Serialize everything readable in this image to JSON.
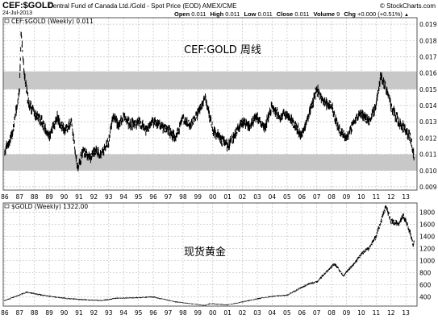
{
  "header": {
    "symbol": "CEF:$GOLD",
    "description": "Central Fund of Canada Ltd./Gold - Spot Price (EOD) AMEX/CME",
    "watermark": "© StockCharts.com",
    "date": "24-Jul-2013",
    "open_label": "Open",
    "open": "0.011",
    "high_label": "High",
    "high": "0.011",
    "low_label": "Low",
    "low": "0.011",
    "close_label": "Close",
    "close": "0.011",
    "volume_label": "Volume",
    "volume": "9",
    "chg_label": "Chg",
    "chg": "+0.000 (+0.51%)",
    "chg_arrow": "▲"
  },
  "chart_data": [
    {
      "type": "line",
      "title": "CEF:$GOLD (Weekly) 0.011",
      "annotation": "CEF:GOLD 周线",
      "x_ticks": [
        "86",
        "87",
        "88",
        "89",
        "90",
        "91",
        "92",
        "93",
        "94",
        "95",
        "96",
        "97",
        "98",
        "99",
        "00",
        "01",
        "02",
        "03",
        "04",
        "05",
        "06",
        "07",
        "08",
        "09",
        "10",
        "11",
        "12",
        "13"
      ],
      "y_ticks": [
        "0.009",
        "0.010",
        "0.011",
        "0.012",
        "0.013",
        "0.014",
        "0.015",
        "0.016",
        "0.017",
        "0.018",
        "0.019"
      ],
      "ylim": [
        0.0088,
        0.0194
      ],
      "grid": true,
      "shaded_bands": [
        {
          "from": 0.01,
          "to": 0.011,
          "color": "#c8c8c8"
        },
        {
          "from": 0.015,
          "to": 0.0161,
          "color": "#c8c8c8"
        }
      ],
      "x": [
        1986.0,
        1986.5,
        1987.0,
        1987.1,
        1987.3,
        1987.6,
        1988.0,
        1988.5,
        1989.0,
        1989.5,
        1990.0,
        1990.5,
        1990.9,
        1991.3,
        1991.8,
        1992.0,
        1992.5,
        1993.0,
        1993.3,
        1993.6,
        1994.0,
        1994.5,
        1995.0,
        1995.5,
        1996.0,
        1996.5,
        1997.0,
        1997.5,
        1998.0,
        1998.5,
        1999.0,
        1999.5,
        2000.0,
        2000.5,
        2001.0,
        2001.5,
        2002.0,
        2002.5,
        2003.0,
        2003.5,
        2004.0,
        2004.5,
        2005.0,
        2005.5,
        2006.0,
        2006.5,
        2007.0,
        2007.5,
        2008.0,
        2008.5,
        2009.0,
        2009.5,
        2010.0,
        2010.5,
        2011.0,
        2011.3,
        2011.7,
        2012.0,
        2012.5,
        2013.0,
        2013.3,
        2013.55
      ],
      "values": [
        0.0112,
        0.0122,
        0.015,
        0.0185,
        0.016,
        0.0142,
        0.0135,
        0.013,
        0.012,
        0.0133,
        0.0125,
        0.013,
        0.0102,
        0.0112,
        0.0108,
        0.0112,
        0.011,
        0.0118,
        0.0135,
        0.0128,
        0.0133,
        0.0128,
        0.013,
        0.0125,
        0.013,
        0.0127,
        0.0125,
        0.012,
        0.0132,
        0.0128,
        0.0135,
        0.0145,
        0.0125,
        0.012,
        0.0115,
        0.0122,
        0.013,
        0.0128,
        0.0133,
        0.0126,
        0.014,
        0.0133,
        0.0135,
        0.0128,
        0.0122,
        0.0135,
        0.015,
        0.0142,
        0.014,
        0.0125,
        0.012,
        0.013,
        0.0135,
        0.013,
        0.014,
        0.0158,
        0.015,
        0.014,
        0.013,
        0.0125,
        0.012,
        0.0108
      ]
    },
    {
      "type": "line",
      "title": "$GOLD (Weekly) 1322.00",
      "annotation": "现货黄金",
      "x_ticks": [
        "86",
        "87",
        "88",
        "89",
        "90",
        "91",
        "92",
        "93",
        "94",
        "95",
        "96",
        "97",
        "98",
        "99",
        "00",
        "01",
        "02",
        "03",
        "04",
        "05",
        "06",
        "07",
        "08",
        "09",
        "10",
        "11",
        "12",
        "13"
      ],
      "y_ticks": [
        "400",
        "600",
        "800",
        "1000",
        "1200",
        "1400",
        "1600",
        "1800"
      ],
      "ylim": [
        250,
        1950
      ],
      "grid": true,
      "x": [
        1986.0,
        1987.5,
        1988.5,
        1990.0,
        1991.0,
        1992.5,
        1993.5,
        1994.5,
        1996.0,
        1997.5,
        1999.5,
        1999.8,
        2001.0,
        2002.0,
        2003.0,
        2004.0,
        2005.0,
        2006.0,
        2006.5,
        2007.0,
        2008.2,
        2008.8,
        2009.5,
        2010.0,
        2010.5,
        2011.0,
        2011.65,
        2012.0,
        2012.5,
        2012.8,
        2013.0,
        2013.3,
        2013.5,
        2013.55
      ],
      "values": [
        340,
        480,
        430,
        380,
        360,
        340,
        380,
        385,
        400,
        320,
        260,
        290,
        270,
        320,
        370,
        410,
        430,
        560,
        620,
        650,
        950,
        750,
        950,
        1100,
        1200,
        1400,
        1900,
        1650,
        1600,
        1750,
        1650,
        1450,
        1250,
        1322
      ]
    }
  ]
}
